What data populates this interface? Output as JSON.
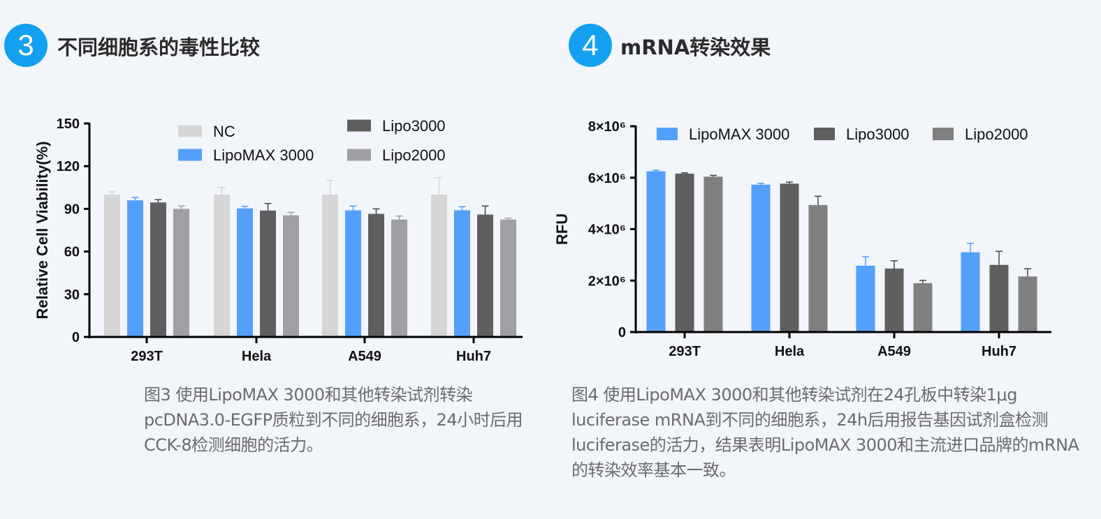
{
  "sections": [
    {
      "number": "3",
      "title": "不同细胞系的毒性比较",
      "caption": "图3 使用LipoMAX 3000和其他转染试剂转染pcDNA3.0-EGFP质粒到不同的细胞系，24小时后用CCK-8检测细胞的活力。"
    },
    {
      "number": "4",
      "title": "mRNA转染效果",
      "caption": "图4 使用LipoMAX 3000和其他转染试剂在24孔板中转染1μg luciferase mRNA到不同的细胞系，24h后用报告基因试剂盒检测luciferase的活力，结果表明LipoMAX 3000和主流进口品牌的mRNA的转染效率基本一致。"
    }
  ],
  "badge_color": "#13a0f0",
  "chart_data": [
    {
      "type": "bar",
      "title": "",
      "xlabel": "",
      "ylabel": "Relative Cell Viability(%)",
      "ylim": [
        0,
        150
      ],
      "yticks": [
        0,
        30,
        60,
        90,
        120,
        150
      ],
      "ytick_labels": [
        "0",
        "30",
        "60",
        "90",
        "120",
        "150"
      ],
      "categories": [
        "293T",
        "Hela",
        "A549",
        "Huh7"
      ],
      "legend_position": "top",
      "grid": false,
      "series": [
        {
          "name": "NC",
          "color": "#d6d6d6",
          "values": [
            100,
            100,
            100,
            100
          ],
          "errors": [
            2,
            5,
            10,
            12
          ]
        },
        {
          "name": "LipoMAX 3000",
          "color": "#52a0fb",
          "values": [
            96,
            90.3,
            89,
            89
          ],
          "errors": [
            2,
            1.5,
            3,
            2.5
          ]
        },
        {
          "name": "Lipo3000",
          "color": "#5f5f5f",
          "values": [
            94.5,
            88.8,
            86.5,
            86
          ],
          "errors": [
            2,
            5,
            3.5,
            6
          ]
        },
        {
          "name": "Lipo2000",
          "color": "#a0a0a4",
          "values": [
            90,
            85.5,
            82.5,
            82.5
          ],
          "errors": [
            2,
            2,
            2.5,
            1
          ]
        }
      ]
    },
    {
      "type": "bar",
      "title": "",
      "xlabel": "",
      "ylabel": "RFU",
      "ylim": [
        0,
        8000000
      ],
      "yticks": [
        0,
        2000000,
        4000000,
        6000000,
        8000000
      ],
      "ytick_labels": [
        "0",
        "2×10⁶",
        "4×10⁶",
        "6×10⁶",
        "8×10⁶"
      ],
      "categories": [
        "293T",
        "Hela",
        "A549",
        "Huh7"
      ],
      "legend_position": "top",
      "grid": false,
      "series": [
        {
          "name": "LipoMAX 3000",
          "color": "#52a0fb",
          "values": [
            6250000,
            5730000,
            2580000,
            3100000
          ],
          "errors": [
            40000,
            50000,
            350000,
            350000
          ]
        },
        {
          "name": "Lipo3000",
          "color": "#5f5f5f",
          "values": [
            6160000,
            5770000,
            2470000,
            2610000
          ],
          "errors": [
            30000,
            60000,
            300000,
            530000
          ]
        },
        {
          "name": "Lipo2000",
          "color": "#808080",
          "values": [
            6040000,
            4940000,
            1900000,
            2160000
          ],
          "errors": [
            50000,
            340000,
            110000,
            300000
          ]
        }
      ]
    }
  ]
}
